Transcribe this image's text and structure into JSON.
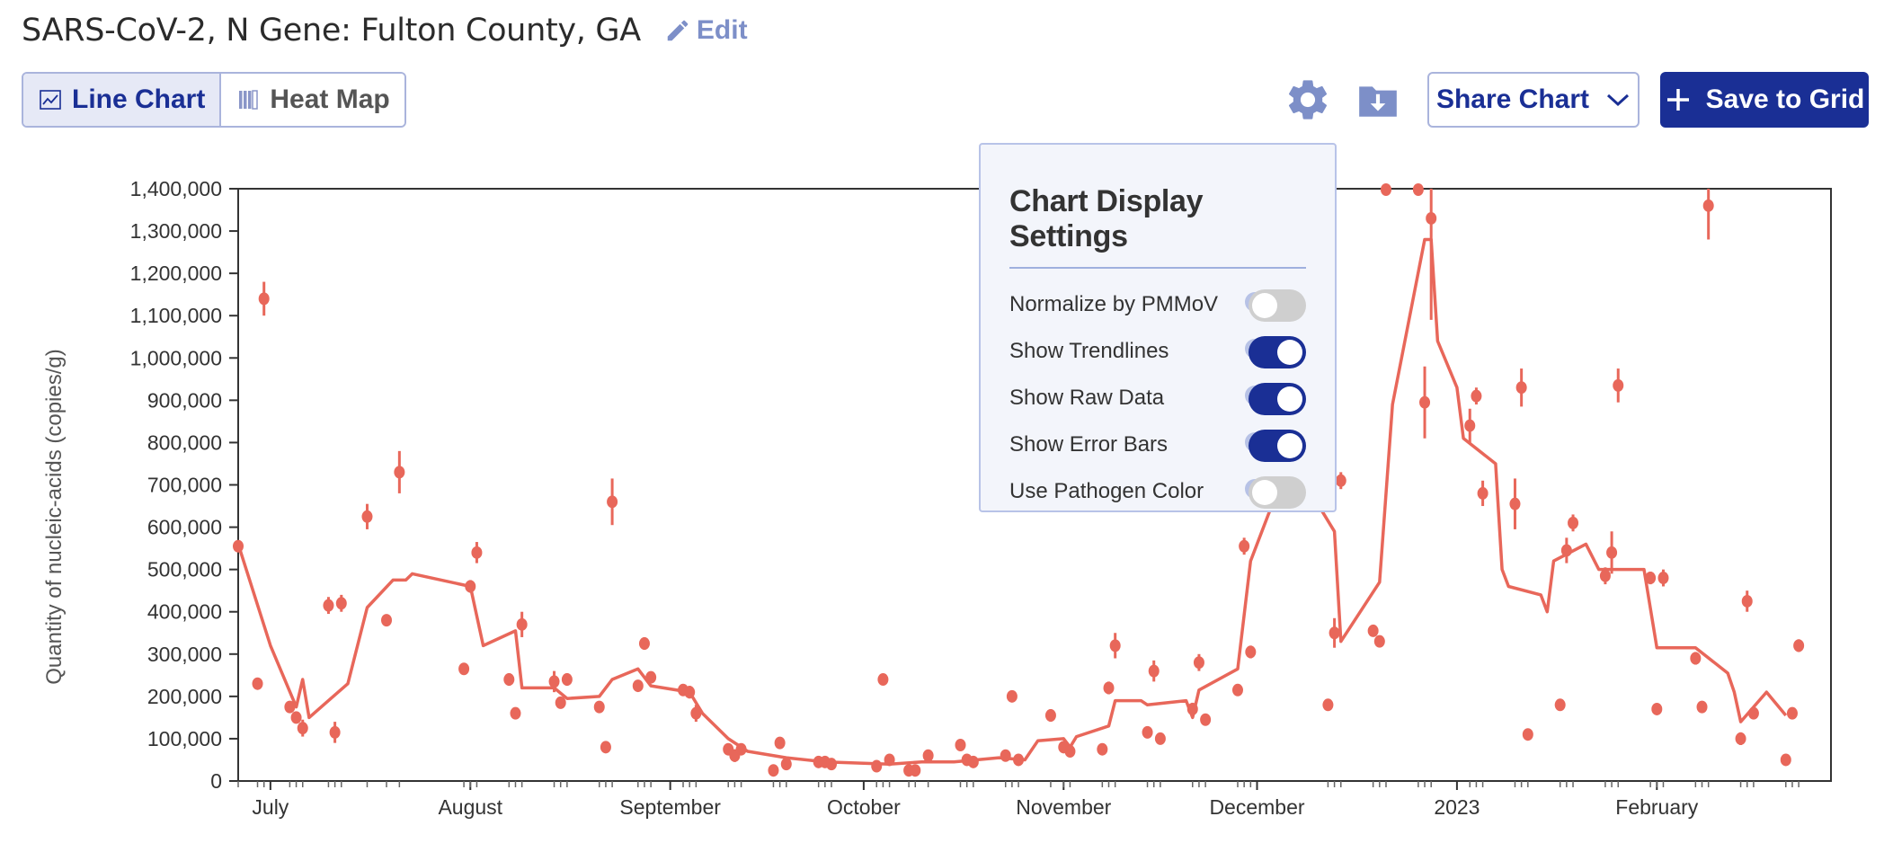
{
  "header": {
    "title": "SARS-CoV-2, N Gene: Fulton County, GA",
    "edit_label": "Edit"
  },
  "view_toggle": {
    "line_label": "Line Chart",
    "heatmap_label": "Heat Map",
    "active": "Line Chart"
  },
  "toolbar": {
    "settings_icon": "gear-icon",
    "download_icon": "download-icon",
    "share_label": "Share Chart",
    "save_label": "Save to Grid"
  },
  "settings": {
    "title": "Chart Display Settings",
    "items": [
      {
        "label": "Normalize by PMMoV",
        "on": false
      },
      {
        "label": "Show Trendlines",
        "on": true
      },
      {
        "label": "Show Raw Data",
        "on": true
      },
      {
        "label": "Show Error Bars",
        "on": true
      },
      {
        "label": "Use Pathogen Color",
        "on": false
      }
    ]
  },
  "colors": {
    "accent": "#1a2f95",
    "series": "#e8675a",
    "edit": "#7d8fc8"
  },
  "chart_data": {
    "type": "line",
    "ylabel": "Quantity of nucleic-acids (copies/g)",
    "ylim": [
      0,
      1400000
    ],
    "yticks": [
      0,
      100000,
      200000,
      300000,
      400000,
      500000,
      600000,
      700000,
      800000,
      900000,
      1000000,
      1100000,
      1200000,
      1300000,
      1400000
    ],
    "ytick_labels": [
      "0",
      "100,000",
      "200,000",
      "300,000",
      "400,000",
      "500,000",
      "600,000",
      "700,000",
      "800,000",
      "900,000",
      "1,000,000",
      "1,100,000",
      "1,200,000",
      "1,300,000",
      "1,400,000"
    ],
    "xlim": [
      "2022-06-26",
      "2023-02-28"
    ],
    "xticks": [
      {
        "date": "2022-07-01",
        "label": "July"
      },
      {
        "date": "2022-08-01",
        "label": "August"
      },
      {
        "date": "2022-09-01",
        "label": "September"
      },
      {
        "date": "2022-10-01",
        "label": "October"
      },
      {
        "date": "2022-11-01",
        "label": "November"
      },
      {
        "date": "2022-12-01",
        "label": "December"
      },
      {
        "date": "2023-01-01",
        "label": "2023"
      },
      {
        "date": "2023-02-01",
        "label": "February"
      }
    ],
    "grid": false,
    "legend": "none",
    "series": [
      {
        "kind": "trendline",
        "points": [
          [
            "2022-06-26",
            560000
          ],
          [
            "2022-07-01",
            320000
          ],
          [
            "2022-07-05",
            175000
          ],
          [
            "2022-07-06",
            240000
          ],
          [
            "2022-07-07",
            150000
          ],
          [
            "2022-07-10",
            190000
          ],
          [
            "2022-07-13",
            230000
          ],
          [
            "2022-07-16",
            410000
          ],
          [
            "2022-07-20",
            475000
          ],
          [
            "2022-07-22",
            475000
          ],
          [
            "2022-07-23",
            490000
          ],
          [
            "2022-08-01",
            460000
          ],
          [
            "2022-08-03",
            320000
          ],
          [
            "2022-08-08",
            355000
          ],
          [
            "2022-08-09",
            220000
          ],
          [
            "2022-08-14",
            220000
          ],
          [
            "2022-08-16",
            195000
          ],
          [
            "2022-08-21",
            200000
          ],
          [
            "2022-08-23",
            240000
          ],
          [
            "2022-08-27",
            265000
          ],
          [
            "2022-08-29",
            225000
          ],
          [
            "2022-09-04",
            210000
          ],
          [
            "2022-09-06",
            160000
          ],
          [
            "2022-09-10",
            100000
          ],
          [
            "2022-09-13",
            70000
          ],
          [
            "2022-09-19",
            55000
          ],
          [
            "2022-09-25",
            45000
          ],
          [
            "2022-10-05",
            40000
          ],
          [
            "2022-10-10",
            45000
          ],
          [
            "2022-10-15",
            45000
          ],
          [
            "2022-10-22",
            55000
          ],
          [
            "2022-10-26",
            50000
          ],
          [
            "2022-10-28",
            95000
          ],
          [
            "2022-11-01",
            100000
          ],
          [
            "2022-11-02",
            80000
          ],
          [
            "2022-11-03",
            105000
          ],
          [
            "2022-11-08",
            130000
          ],
          [
            "2022-11-09",
            190000
          ],
          [
            "2022-11-13",
            190000
          ],
          [
            "2022-11-14",
            180000
          ],
          [
            "2022-11-20",
            190000
          ],
          [
            "2022-11-21",
            150000
          ],
          [
            "2022-11-22",
            215000
          ],
          [
            "2022-11-28",
            265000
          ],
          [
            "2022-11-30",
            520000
          ],
          [
            "2022-12-03",
            640000
          ],
          [
            "2022-12-11",
            640000
          ],
          [
            "2022-12-13",
            590000
          ],
          [
            "2022-12-14",
            330000
          ],
          [
            "2022-12-20",
            470000
          ],
          [
            "2022-12-22",
            890000
          ],
          [
            "2022-12-27",
            1280000
          ],
          [
            "2022-12-28",
            1280000
          ],
          [
            "2022-12-29",
            1040000
          ],
          [
            "2023-01-01",
            930000
          ],
          [
            "2023-01-02",
            810000
          ],
          [
            "2023-01-07",
            750000
          ],
          [
            "2023-01-08",
            500000
          ],
          [
            "2023-01-09",
            460000
          ],
          [
            "2023-01-14",
            440000
          ],
          [
            "2023-01-15",
            400000
          ],
          [
            "2023-01-16",
            520000
          ],
          [
            "2023-01-21",
            560000
          ],
          [
            "2023-01-23",
            500000
          ],
          [
            "2023-01-27",
            500000
          ],
          [
            "2023-01-30",
            500000
          ],
          [
            "2023-02-01",
            315000
          ],
          [
            "2023-02-07",
            315000
          ],
          [
            "2023-02-12",
            255000
          ],
          [
            "2023-02-13",
            210000
          ],
          [
            "2023-02-14",
            140000
          ],
          [
            "2023-02-18",
            210000
          ],
          [
            "2023-02-21",
            155000
          ]
        ]
      },
      {
        "kind": "raw",
        "points": [
          [
            "2022-06-26",
            555000,
            0
          ],
          [
            "2022-06-29",
            230000,
            0
          ],
          [
            "2022-06-30",
            1140000,
            40000
          ],
          [
            "2022-07-04",
            175000,
            0
          ],
          [
            "2022-07-05",
            150000,
            0
          ],
          [
            "2022-07-06",
            125000,
            20000
          ],
          [
            "2022-07-10",
            415000,
            20000
          ],
          [
            "2022-07-11",
            115000,
            25000
          ],
          [
            "2022-07-12",
            420000,
            20000
          ],
          [
            "2022-07-16",
            625000,
            30000
          ],
          [
            "2022-07-19",
            380000,
            10000
          ],
          [
            "2022-07-21",
            730000,
            50000
          ],
          [
            "2022-07-31",
            265000,
            0
          ],
          [
            "2022-08-01",
            460000,
            15000
          ],
          [
            "2022-08-02",
            540000,
            25000
          ],
          [
            "2022-08-07",
            240000,
            15000
          ],
          [
            "2022-08-08",
            160000,
            0
          ],
          [
            "2022-08-09",
            370000,
            30000
          ],
          [
            "2022-08-14",
            235000,
            25000
          ],
          [
            "2022-08-15",
            185000,
            0
          ],
          [
            "2022-08-16",
            240000,
            15000
          ],
          [
            "2022-08-21",
            175000,
            0
          ],
          [
            "2022-08-22",
            80000,
            0
          ],
          [
            "2022-08-23",
            660000,
            55000
          ],
          [
            "2022-08-27",
            225000,
            0
          ],
          [
            "2022-08-28",
            325000,
            15000
          ],
          [
            "2022-08-29",
            245000,
            10000
          ],
          [
            "2022-09-03",
            215000,
            10000
          ],
          [
            "2022-09-04",
            210000,
            15000
          ],
          [
            "2022-09-05",
            160000,
            20000
          ],
          [
            "2022-09-10",
            75000,
            10000
          ],
          [
            "2022-09-11",
            60000,
            15000
          ],
          [
            "2022-09-12",
            75000,
            0
          ],
          [
            "2022-09-17",
            25000,
            0
          ],
          [
            "2022-09-18",
            90000,
            0
          ],
          [
            "2022-09-19",
            40000,
            0
          ],
          [
            "2022-09-24",
            45000,
            0
          ],
          [
            "2022-09-25",
            45000,
            0
          ],
          [
            "2022-09-26",
            40000,
            0
          ],
          [
            "2022-10-03",
            35000,
            0
          ],
          [
            "2022-10-04",
            240000,
            0
          ],
          [
            "2022-10-05",
            50000,
            0
          ],
          [
            "2022-10-08",
            25000,
            0
          ],
          [
            "2022-10-09",
            25000,
            0
          ],
          [
            "2022-10-11",
            60000,
            0
          ],
          [
            "2022-10-16",
            85000,
            0
          ],
          [
            "2022-10-17",
            50000,
            0
          ],
          [
            "2022-10-18",
            45000,
            0
          ],
          [
            "2022-10-23",
            60000,
            0
          ],
          [
            "2022-10-24",
            200000,
            0
          ],
          [
            "2022-10-25",
            50000,
            0
          ],
          [
            "2022-10-30",
            155000,
            15000
          ],
          [
            "2022-11-01",
            80000,
            0
          ],
          [
            "2022-11-02",
            70000,
            0
          ],
          [
            "2022-11-07",
            75000,
            0
          ],
          [
            "2022-11-08",
            220000,
            15000
          ],
          [
            "2022-11-09",
            320000,
            30000
          ],
          [
            "2022-11-14",
            115000,
            0
          ],
          [
            "2022-11-15",
            260000,
            25000
          ],
          [
            "2022-11-16",
            100000,
            0
          ],
          [
            "2022-11-21",
            170000,
            15000
          ],
          [
            "2022-11-22",
            280000,
            20000
          ],
          [
            "2022-11-23",
            145000,
            0
          ],
          [
            "2022-11-28",
            215000,
            0
          ],
          [
            "2022-11-29",
            555000,
            20000
          ],
          [
            "2022-11-30",
            305000,
            15000
          ],
          [
            "2022-12-12",
            180000,
            0
          ],
          [
            "2022-12-13",
            350000,
            35000
          ],
          [
            "2022-12-14",
            710000,
            20000
          ],
          [
            "2022-12-19",
            355000,
            0
          ],
          [
            "2022-12-20",
            330000,
            0
          ],
          [
            "2022-12-21",
            1410000,
            0
          ],
          [
            "2022-12-26",
            1410000,
            0
          ],
          [
            "2022-12-27",
            895000,
            85000
          ],
          [
            "2022-12-28",
            1330000,
            240000
          ],
          [
            "2023-01-03",
            840000,
            40000
          ],
          [
            "2023-01-04",
            910000,
            20000
          ],
          [
            "2023-01-05",
            680000,
            30000
          ],
          [
            "2023-01-10",
            655000,
            60000
          ],
          [
            "2023-01-11",
            930000,
            45000
          ],
          [
            "2023-01-12",
            110000,
            0
          ],
          [
            "2023-01-17",
            180000,
            0
          ],
          [
            "2023-01-18",
            545000,
            30000
          ],
          [
            "2023-01-19",
            610000,
            20000
          ],
          [
            "2023-01-24",
            485000,
            20000
          ],
          [
            "2023-01-25",
            540000,
            50000
          ],
          [
            "2023-01-26",
            935000,
            40000
          ],
          [
            "2023-01-31",
            480000,
            15000
          ],
          [
            "2023-02-01",
            170000,
            0
          ],
          [
            "2023-02-02",
            480000,
            20000
          ],
          [
            "2023-02-07",
            290000,
            15000
          ],
          [
            "2023-02-08",
            175000,
            0
          ],
          [
            "2023-02-09",
            1360000,
            80000
          ],
          [
            "2023-02-14",
            100000,
            15000
          ],
          [
            "2023-02-15",
            425000,
            25000
          ],
          [
            "2023-02-16",
            160000,
            0
          ],
          [
            "2023-02-21",
            50000,
            0
          ],
          [
            "2023-02-22",
            160000,
            0
          ],
          [
            "2023-02-23",
            320000,
            15000
          ]
        ]
      }
    ]
  }
}
